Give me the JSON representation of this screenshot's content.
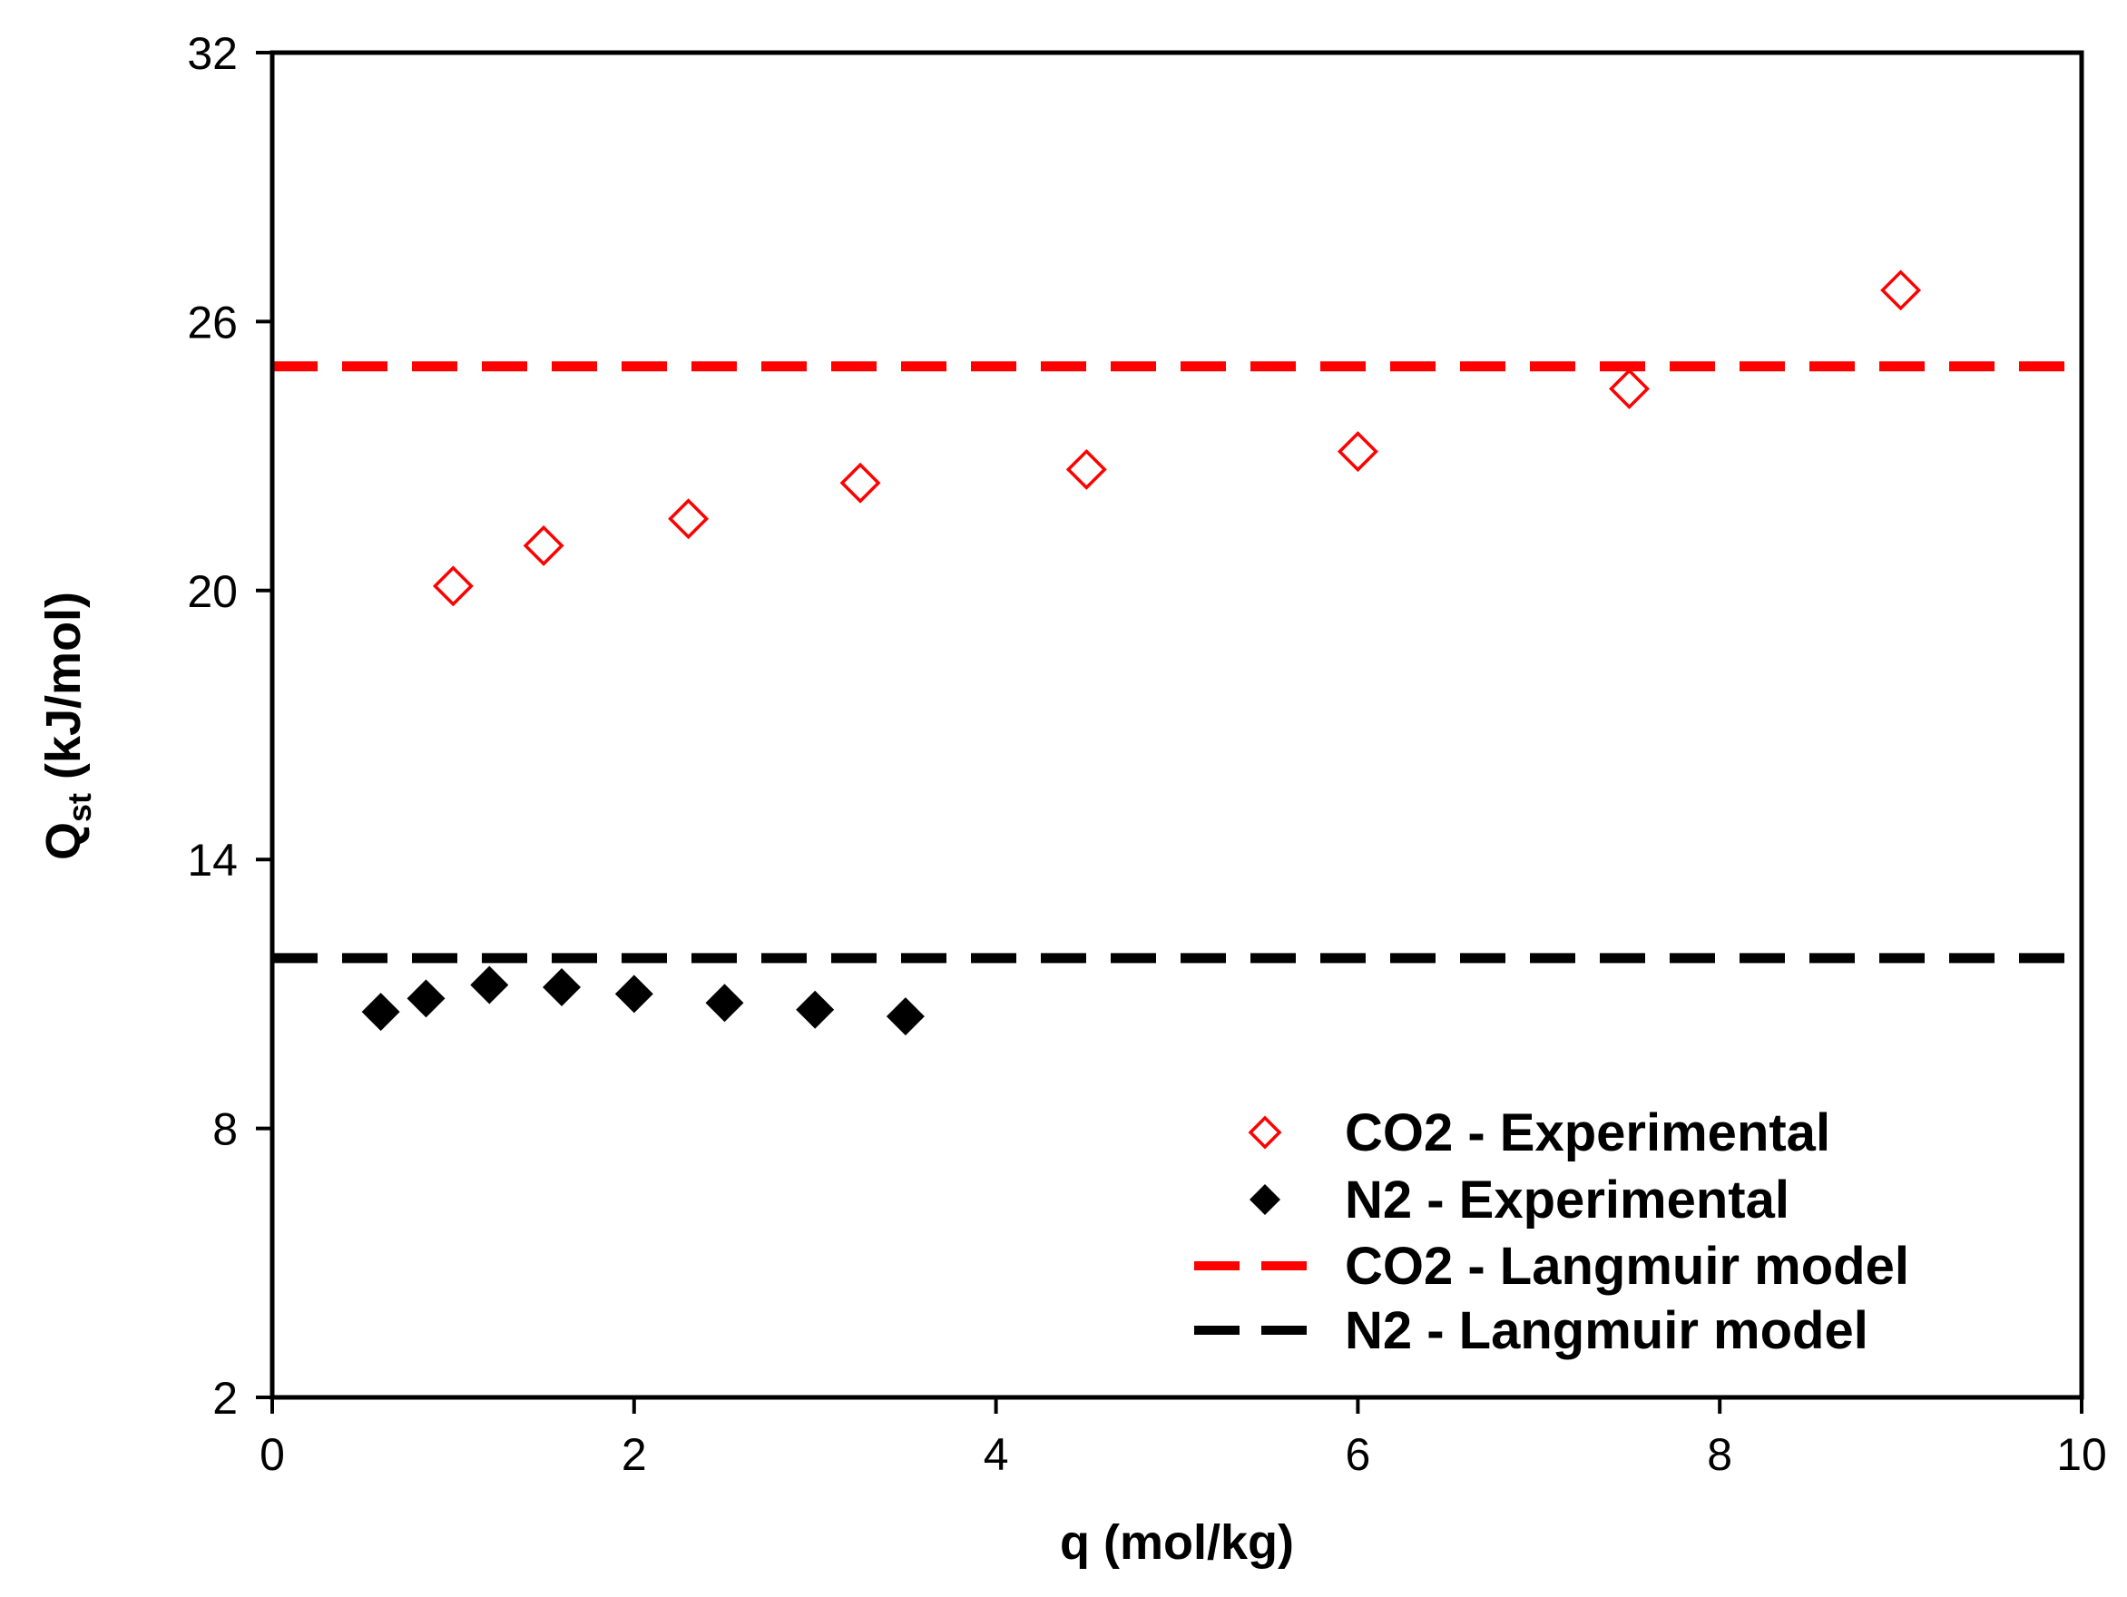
{
  "chart_data": {
    "type": "scatter",
    "xlabel": "q (mol/kg)",
    "ylabel": {
      "main": "Q",
      "sub": "st",
      "rest": " (kJ/mol)"
    },
    "xlim": [
      0,
      10
    ],
    "ylim": [
      2,
      32
    ],
    "x_ticks": [
      0,
      2,
      4,
      6,
      8,
      10
    ],
    "y_ticks": [
      2,
      8,
      14,
      20,
      26,
      32
    ],
    "grid": false,
    "legend_position": "bottom-right",
    "series": [
      {
        "name": "CO2 - Experimental",
        "kind": "scatter",
        "marker": "open-diamond",
        "color": "#ff0000",
        "points": [
          {
            "x": 1.0,
            "y": 20.1
          },
          {
            "x": 1.5,
            "y": 21.0
          },
          {
            "x": 2.3,
            "y": 21.6
          },
          {
            "x": 3.25,
            "y": 22.4
          },
          {
            "x": 4.5,
            "y": 22.7
          },
          {
            "x": 6.0,
            "y": 23.1
          },
          {
            "x": 7.5,
            "y": 24.5
          },
          {
            "x": 9.0,
            "y": 26.7
          }
        ]
      },
      {
        "name": "N2 - Experimental",
        "kind": "scatter",
        "marker": "filled-diamond",
        "color": "#000000",
        "points": [
          {
            "x": 0.6,
            "y": 10.6
          },
          {
            "x": 0.85,
            "y": 10.9
          },
          {
            "x": 1.2,
            "y": 11.2
          },
          {
            "x": 1.6,
            "y": 11.15
          },
          {
            "x": 2.0,
            "y": 11.0
          },
          {
            "x": 2.5,
            "y": 10.8
          },
          {
            "x": 3.0,
            "y": 10.65
          },
          {
            "x": 3.5,
            "y": 10.5
          }
        ]
      },
      {
        "name": "CO2 - Langmuir model",
        "kind": "line",
        "style": "dashed",
        "color": "#ff0000",
        "points": [
          {
            "x": 0,
            "y": 25.0
          },
          {
            "x": 10,
            "y": 25.0
          }
        ]
      },
      {
        "name": "N2 - Langmuir model",
        "kind": "line",
        "style": "dashed",
        "color": "#000000",
        "points": [
          {
            "x": 0,
            "y": 11.8
          },
          {
            "x": 10,
            "y": 11.8
          }
        ]
      }
    ]
  }
}
